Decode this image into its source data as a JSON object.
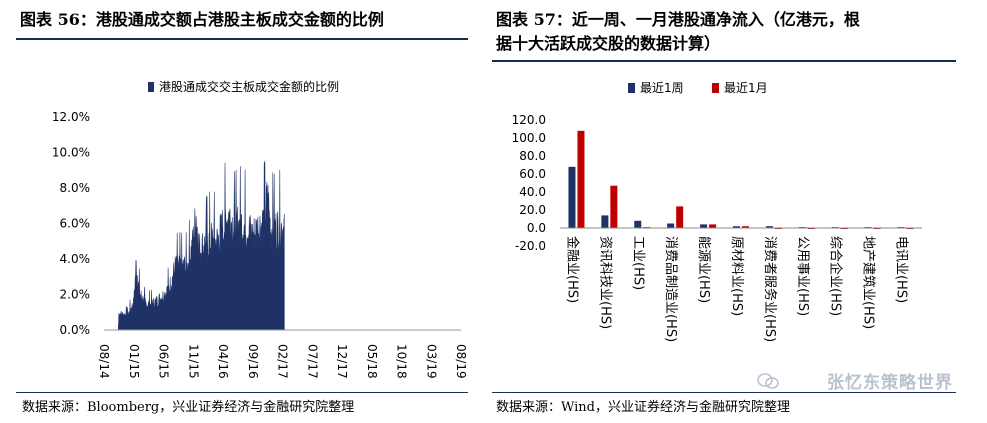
{
  "left": {
    "title": "图表 56：港股通成交额占港股主板成交金额的比例",
    "source": "数据来源：Bloomberg，兴业证券经济与金融研究院整理"
  },
  "right": {
    "title_line1": "图表 57：近一周、一月港股通净流入（亿港元，根",
    "title_line2": "据十大活跃成交股的数据计算）",
    "source": "数据来源：Wind，兴业证券经济与金融研究院整理"
  },
  "watermark": {
    "text": "张忆东策略世界",
    "icon": "wechat-icon"
  },
  "colors": {
    "navy": "#1f3266",
    "red": "#c00000"
  },
  "chart_data": [
    {
      "type": "area",
      "series": [
        {
          "name": "港股通成交交主板成交金额的比例"
        }
      ],
      "y_ticks": [
        "12.0%",
        "10.0%",
        "8.0%",
        "6.0%",
        "4.0%",
        "2.0%",
        "0.0%"
      ],
      "ylim": [
        0,
        12
      ],
      "x_ticks": [
        "08/14",
        "01/15",
        "06/15",
        "11/15",
        "04/16",
        "09/16",
        "02/17",
        "07/17",
        "12/17",
        "05/18",
        "10/18",
        "03/19",
        "08/19"
      ],
      "anchors": [
        [
          0,
          0
        ],
        [
          2.4,
          0
        ],
        [
          2.5,
          0.9
        ],
        [
          4,
          0.8
        ],
        [
          5,
          1.5
        ],
        [
          5.4,
          3.6
        ],
        [
          6,
          2.0
        ],
        [
          7,
          1.4
        ],
        [
          8,
          1.4
        ],
        [
          9,
          1.6
        ],
        [
          10,
          1.9
        ],
        [
          11,
          2.3
        ],
        [
          12,
          3.4
        ],
        [
          14,
          3.4
        ],
        [
          15,
          4.8
        ],
        [
          15.5,
          6.3
        ],
        [
          16,
          4.4
        ],
        [
          18,
          4.9
        ],
        [
          19,
          4.8
        ],
        [
          20,
          5.6
        ],
        [
          21,
          6.3
        ],
        [
          22,
          5.5
        ],
        [
          23,
          5.8
        ],
        [
          24,
          5.6
        ],
        [
          25,
          5.1
        ],
        [
          26,
          5.6
        ],
        [
          27,
          5.9
        ],
        [
          27.5,
          7.2
        ],
        [
          28,
          5.5
        ],
        [
          29,
          5.5
        ],
        [
          30,
          5.6
        ],
        [
          30.3,
          5.8
        ]
      ],
      "y_unit": "percent"
    },
    {
      "type": "bar",
      "series": [
        {
          "name": "最近1周",
          "values": [
            68,
            14,
            8,
            5,
            4,
            2,
            2,
            1,
            1,
            1,
            1
          ]
        },
        {
          "name": "最近1月",
          "values": [
            108,
            47,
            1,
            24,
            4,
            2,
            -1,
            -1,
            -1,
            -1,
            -1
          ]
        }
      ],
      "categories": [
        "金融业(HS)",
        "资讯科技业(HS)",
        "工业(HS)",
        "消费品制造业(HS)",
        "能源业(HS)",
        "原材料业(HS)",
        "消费者服务业(HS)",
        "公用事业(HS)",
        "综合企业(HS)",
        "地产建筑业(HS)",
        "电讯业(HS)"
      ],
      "y_ticks": [
        "120.0",
        "100.0",
        "80.0",
        "60.0",
        "40.0",
        "20.0",
        "0.0",
        "-20.0"
      ],
      "ylim": [
        -20,
        120
      ]
    }
  ]
}
